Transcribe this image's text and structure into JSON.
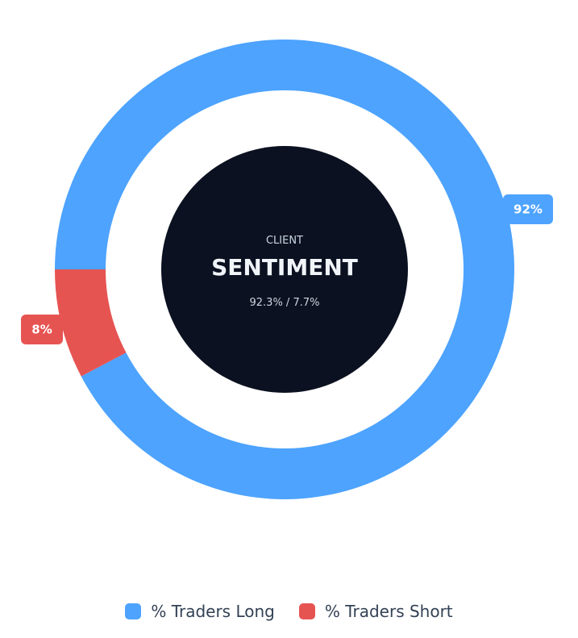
{
  "chart_data": {
    "type": "pie",
    "variant": "donut",
    "title": "SENTIMENT",
    "subtitle_top": "CLIENT",
    "subtitle_bottom": "92.3% / 7.7%",
    "series": [
      {
        "name": "% Traders Long",
        "value": 92.3,
        "label": "92%",
        "color": "#4da3fe"
      },
      {
        "name": "% Traders Short",
        "value": 7.7,
        "label": "8%",
        "color": "#e65452"
      }
    ],
    "start_angle": "top",
    "direction": "clockwise",
    "legend_position": "bottom",
    "center_color": "#0b1120"
  }
}
